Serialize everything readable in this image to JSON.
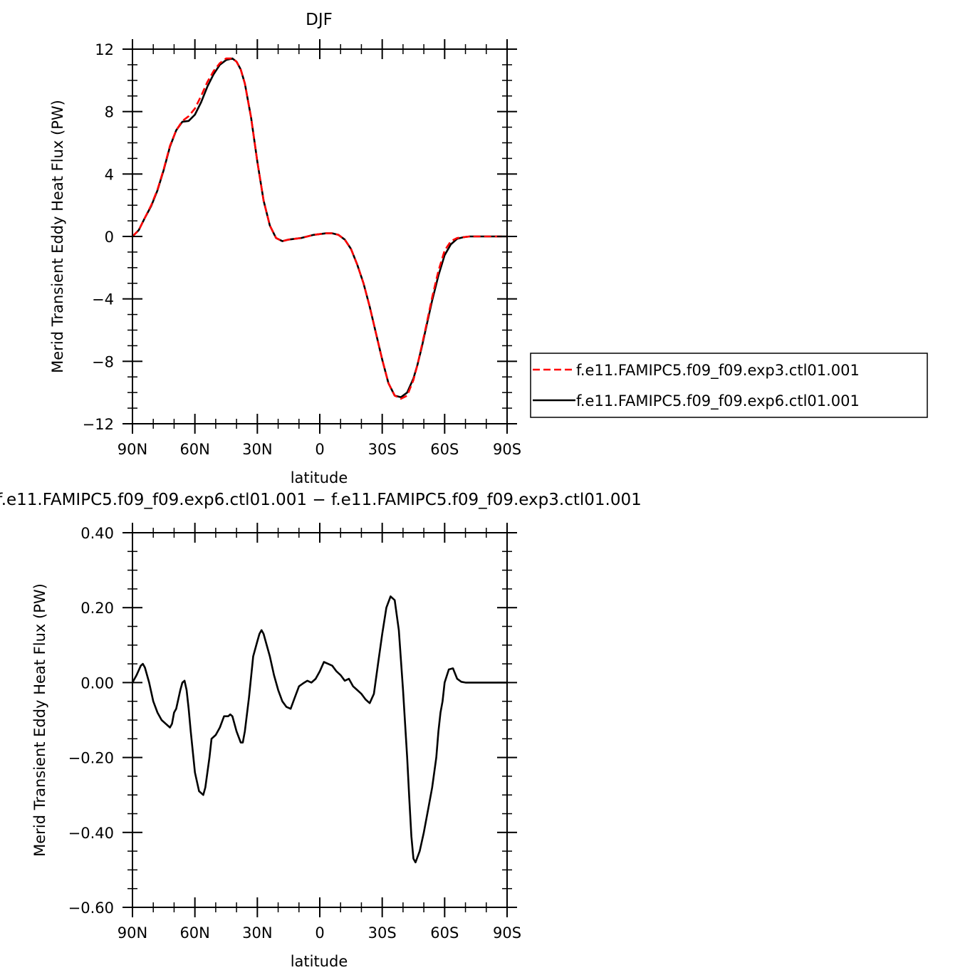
{
  "chart_data": [
    {
      "type": "line",
      "title": "DJF",
      "xlabel": "latitude",
      "ylabel": "Merid Transient Eddy Heat Flux (PW)",
      "xlim": [
        90,
        -90
      ],
      "ylim": [
        -12,
        12
      ],
      "x_ticks": [
        {
          "value": 90,
          "label": "90N"
        },
        {
          "value": 60,
          "label": "60N"
        },
        {
          "value": 30,
          "label": "30N"
        },
        {
          "value": 0,
          "label": "0"
        },
        {
          "value": -30,
          "label": "30S"
        },
        {
          "value": -60,
          "label": "60S"
        },
        {
          "value": -90,
          "label": "90S"
        }
      ],
      "y_ticks": [
        {
          "value": 12,
          "label": "12"
        },
        {
          "value": 8,
          "label": "8"
        },
        {
          "value": 4,
          "label": "4"
        },
        {
          "value": 0,
          "label": "0"
        },
        {
          "value": -4,
          "label": "−4"
        },
        {
          "value": -8,
          "label": "−8"
        },
        {
          "value": -12,
          "label": "−12"
        }
      ],
      "legend": "right",
      "series": [
        {
          "name": "f.e11.FAMIPC5.f09_f09.exp3.ctl01.001",
          "color": "#ff0000",
          "dash": true,
          "x": [
            90,
            87,
            84,
            81,
            78,
            75,
            72,
            69,
            66,
            63,
            60,
            57,
            54,
            51,
            48,
            45,
            42,
            40,
            38,
            36,
            33,
            30,
            27,
            24,
            21,
            18,
            15,
            12,
            9,
            6,
            3,
            0,
            -3,
            -6,
            -9,
            -12,
            -15,
            -18,
            -21,
            -24,
            -27,
            -30,
            -33,
            -36,
            -39,
            -42,
            -45,
            -47,
            -49,
            -51,
            -54,
            -57,
            -60,
            -63,
            -66,
            -69,
            -72,
            -75,
            -78,
            -81,
            -84,
            -87,
            -90
          ],
          "y": [
            0.0,
            0.4,
            1.2,
            2.0,
            3.0,
            4.3,
            5.8,
            6.8,
            7.4,
            7.7,
            8.2,
            9.0,
            9.9,
            10.6,
            11.1,
            11.4,
            11.4,
            11.2,
            10.7,
            9.8,
            7.6,
            4.8,
            2.3,
            0.7,
            -0.1,
            -0.3,
            -0.2,
            -0.15,
            -0.1,
            0.0,
            0.1,
            0.15,
            0.2,
            0.2,
            0.1,
            -0.2,
            -0.8,
            -1.8,
            -3.0,
            -4.5,
            -6.2,
            -7.9,
            -9.4,
            -10.2,
            -10.4,
            -10.2,
            -9.2,
            -8.2,
            -7.0,
            -5.8,
            -3.9,
            -2.2,
            -0.9,
            -0.3,
            -0.1,
            -0.05,
            0.0,
            0.0,
            0.0,
            0.0,
            0.0,
            0.0,
            0.0
          ]
        },
        {
          "name": "f.e11.FAMIPC5.f09_f09.exp6.ctl01.001",
          "color": "#000000",
          "dash": false,
          "x": [
            90,
            87,
            84,
            81,
            78,
            75,
            72,
            69,
            66,
            63,
            60,
            57,
            54,
            51,
            48,
            45,
            42,
            40,
            38,
            36,
            33,
            30,
            27,
            24,
            21,
            18,
            15,
            12,
            9,
            6,
            3,
            0,
            -3,
            -6,
            -9,
            -12,
            -15,
            -18,
            -21,
            -24,
            -27,
            -30,
            -33,
            -36,
            -39,
            -42,
            -45,
            -47,
            -49,
            -51,
            -54,
            -57,
            -60,
            -63,
            -66,
            -69,
            -72,
            -75,
            -78,
            -81,
            -84,
            -87,
            -90
          ],
          "y": [
            0.0,
            0.4,
            1.2,
            1.95,
            2.95,
            4.25,
            5.75,
            6.8,
            7.35,
            7.4,
            7.8,
            8.6,
            9.6,
            10.4,
            11.0,
            11.3,
            11.4,
            11.2,
            10.7,
            9.8,
            7.6,
            4.8,
            2.3,
            0.7,
            -0.1,
            -0.3,
            -0.2,
            -0.15,
            -0.1,
            0.0,
            0.1,
            0.15,
            0.2,
            0.2,
            0.1,
            -0.2,
            -0.8,
            -1.8,
            -3.0,
            -4.5,
            -6.2,
            -7.9,
            -9.4,
            -10.2,
            -10.3,
            -10.0,
            -9.1,
            -8.2,
            -7.1,
            -5.9,
            -4.1,
            -2.5,
            -1.2,
            -0.5,
            -0.15,
            -0.05,
            0.0,
            0.0,
            0.0,
            0.0,
            0.0,
            0.0,
            0.0
          ]
        }
      ]
    },
    {
      "type": "line",
      "title": "f.e11.FAMIPC5.f09_f09.exp6.ctl01.001 − f.e11.FAMIPC5.f09_f09.exp3.ctl01.001",
      "xlabel": "latitude",
      "ylabel": "Merid Transient Eddy Heat Flux (PW)",
      "xlim": [
        90,
        -90
      ],
      "ylim": [
        -0.6,
        0.4
      ],
      "x_ticks": [
        {
          "value": 90,
          "label": "90N"
        },
        {
          "value": 60,
          "label": "60N"
        },
        {
          "value": 30,
          "label": "30N"
        },
        {
          "value": 0,
          "label": "0"
        },
        {
          "value": -30,
          "label": "30S"
        },
        {
          "value": -60,
          "label": "60S"
        },
        {
          "value": -90,
          "label": "90S"
        }
      ],
      "y_ticks": [
        {
          "value": 0.4,
          "label": "0.40"
        },
        {
          "value": 0.2,
          "label": "0.20"
        },
        {
          "value": 0.0,
          "label": "0.00"
        },
        {
          "value": -0.2,
          "label": "−0.20"
        },
        {
          "value": -0.4,
          "label": "−0.40"
        },
        {
          "value": -0.6,
          "label": "−0.60"
        }
      ],
      "series": [
        {
          "color": "#000000",
          "x": [
            90,
            88,
            86,
            85,
            84,
            82,
            80,
            78,
            76,
            74,
            72,
            71,
            70,
            69,
            67,
            66,
            65,
            64,
            63,
            62,
            60,
            58,
            56,
            55,
            53,
            52,
            50,
            48,
            46,
            44,
            43,
            42,
            40,
            38,
            37,
            36,
            34,
            32,
            30,
            29,
            28,
            27,
            26,
            24,
            22,
            20,
            18,
            16,
            14,
            12,
            10,
            8,
            6,
            4,
            2,
            0,
            -2,
            -4,
            -6,
            -8,
            -10,
            -12,
            -14,
            -16,
            -18,
            -20,
            -22,
            -24,
            -26,
            -28,
            -30,
            -32,
            -34,
            -36,
            -38,
            -40,
            -42,
            -43,
            -44,
            -45,
            -46,
            -48,
            -50,
            -52,
            -54,
            -56,
            -57,
            -58,
            -59,
            -60,
            -62,
            -64,
            -66,
            -68,
            -70,
            -72,
            -74,
            -76,
            -78,
            -80,
            -81,
            -82,
            -84,
            -86,
            -88,
            -90
          ],
          "y": [
            0.0,
            0.02,
            0.045,
            0.05,
            0.04,
            0.0,
            -0.05,
            -0.08,
            -0.1,
            -0.11,
            -0.12,
            -0.11,
            -0.08,
            -0.07,
            -0.02,
            0.0,
            0.005,
            -0.02,
            -0.07,
            -0.13,
            -0.24,
            -0.29,
            -0.3,
            -0.28,
            -0.2,
            -0.15,
            -0.14,
            -0.12,
            -0.09,
            -0.09,
            -0.085,
            -0.09,
            -0.13,
            -0.16,
            -0.16,
            -0.13,
            -0.04,
            0.07,
            0.11,
            0.13,
            0.14,
            0.13,
            0.11,
            0.07,
            0.02,
            -0.02,
            -0.05,
            -0.065,
            -0.07,
            -0.04,
            -0.01,
            -0.002,
            0.005,
            0.0,
            0.01,
            0.03,
            0.055,
            0.05,
            0.045,
            0.03,
            0.02,
            0.005,
            0.01,
            -0.01,
            -0.02,
            -0.03,
            -0.045,
            -0.055,
            -0.03,
            0.05,
            0.13,
            0.2,
            0.23,
            0.22,
            0.14,
            -0.02,
            -0.2,
            -0.31,
            -0.41,
            -0.47,
            -0.48,
            -0.45,
            -0.4,
            -0.34,
            -0.28,
            -0.2,
            -0.13,
            -0.08,
            -0.05,
            0.0,
            0.035,
            0.038,
            0.01,
            0.002,
            0.0,
            0.0,
            0.0,
            0.0,
            0.0,
            0.0,
            0.0,
            0.0,
            0.0,
            0.0,
            0.0,
            0.0
          ]
        }
      ]
    }
  ]
}
